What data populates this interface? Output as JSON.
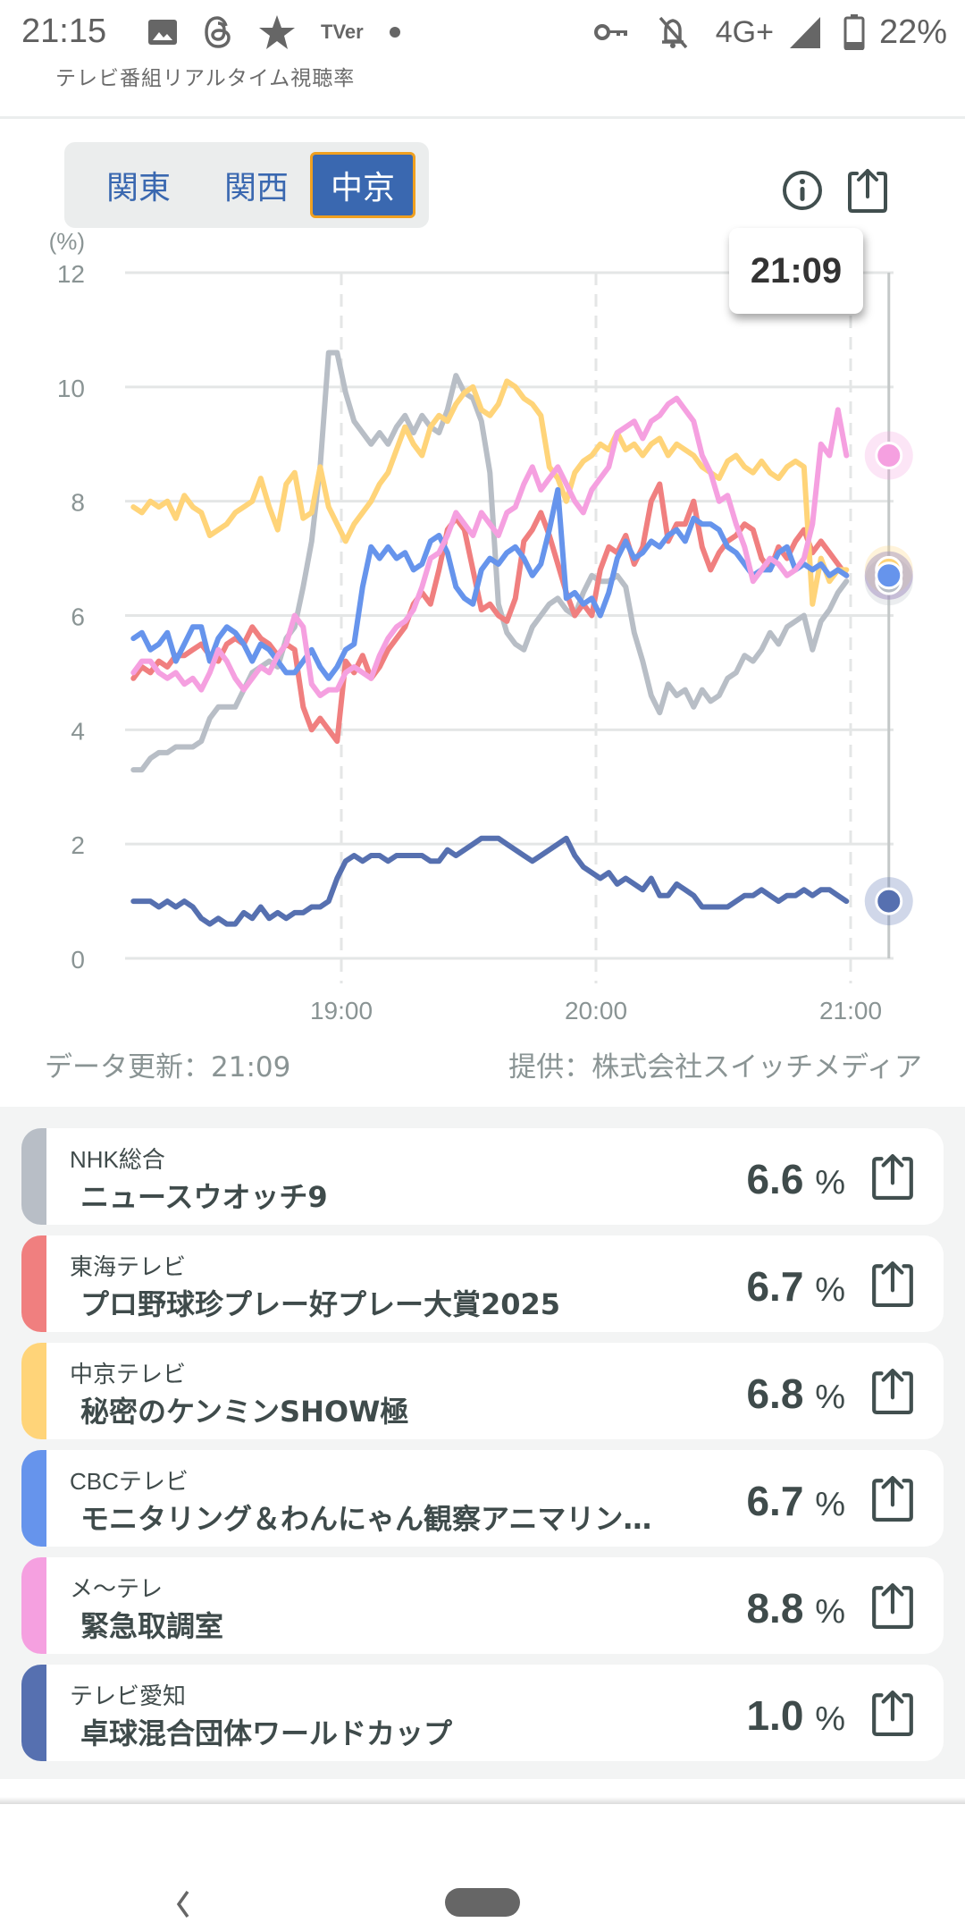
{
  "status_bar": {
    "time": "21:15",
    "left_icons": [
      "image-icon",
      "threads-icon",
      "star-icon",
      "tver-icon",
      "dot-icon"
    ],
    "tver_label": "TVer",
    "network": "4G+",
    "battery": "22%",
    "right_icons": [
      "key-icon",
      "bell-off-icon",
      "signal-icon",
      "battery-icon"
    ]
  },
  "app": {
    "title": "テレビ番組リアルタイム視聴率"
  },
  "region_tabs": [
    {
      "label": "関東",
      "active": false
    },
    {
      "label": "関西",
      "active": false
    },
    {
      "label": "中京",
      "active": true
    }
  ],
  "toolbar": {
    "info_icon": "info-icon",
    "share_icon": "share-icon"
  },
  "tooltip": {
    "time": "21:09"
  },
  "footer": {
    "updated": "データ更新：21:09",
    "provider": "提供：株式会社スイッチメディア"
  },
  "colors": {
    "accent": "#3a68b0",
    "active_border": "#f0a020",
    "nhk": "#b8bec6",
    "tokai": "#f07f7f",
    "chukyo": "#ffd479",
    "cbc": "#6694ec",
    "metele": "#f5a0e0",
    "aichi": "#5670b0"
  },
  "channels": [
    {
      "station": "NHK総合",
      "program": "ニュースウオッチ9",
      "rating": "6.6",
      "unit": "%",
      "color": "#b8bec6"
    },
    {
      "station": "東海テレビ",
      "program": "プロ野球珍プレー好プレー大賞2025",
      "rating": "6.7",
      "unit": "%",
      "color": "#f07f7f"
    },
    {
      "station": "中京テレビ",
      "program": "秘密のケンミンSHOW極",
      "rating": "6.8",
      "unit": "%",
      "color": "#ffd479"
    },
    {
      "station": "CBCテレビ",
      "program": "モニタリング＆わんにゃん観察アニマリン…",
      "rating": "6.7",
      "unit": "%",
      "color": "#6694ec"
    },
    {
      "station": "メ～テレ",
      "program": "緊急取調室",
      "rating": "8.8",
      "unit": "%",
      "color": "#f5a0e0"
    },
    {
      "station": "テレビ愛知",
      "program": "卓球混合団体ワールドカップ",
      "rating": "1.0",
      "unit": "%",
      "color": "#5670b0"
    }
  ],
  "chart_data": {
    "type": "line",
    "title": "",
    "ylabel": "(%)",
    "xlabel": "",
    "ylim": [
      0,
      12
    ],
    "yticks": [
      "0",
      "2",
      "4",
      "6",
      "8",
      "10",
      "12"
    ],
    "ytick_values": [
      0,
      2,
      4,
      6,
      8,
      10,
      12
    ],
    "xticks": [
      "19:00",
      "20:00",
      "21:00"
    ],
    "xtick_minutes": [
      1140,
      1200,
      1260
    ],
    "x_range_minutes": [
      1091,
      1269
    ],
    "cursor_minute": 1269,
    "cursor_label": "21:09",
    "grid": true,
    "x_start_minute": 1091,
    "x_step_minutes": 2,
    "series": [
      {
        "name": "NHK総合",
        "color": "#b8bec6",
        "values": [
          3.3,
          3.3,
          3.5,
          3.6,
          3.6,
          3.7,
          3.7,
          3.7,
          3.8,
          4.2,
          4.4,
          4.4,
          4.4,
          4.7,
          5.0,
          5.1,
          5.2,
          5.1,
          5.6,
          5.8,
          6.5,
          7.3,
          8.6,
          10.6,
          10.6,
          9.9,
          9.4,
          9.2,
          9.0,
          9.2,
          9.0,
          9.3,
          9.5,
          9.2,
          9.5,
          9.3,
          9.2,
          9.6,
          10.2,
          9.9,
          9.8,
          9.4,
          8.5,
          6.2,
          5.7,
          5.5,
          5.4,
          5.8,
          6.0,
          6.2,
          6.3,
          6.1,
          6.0,
          6.4,
          6.7,
          6.6,
          6.6,
          6.7,
          6.5,
          5.7,
          5.2,
          4.6,
          4.3,
          4.8,
          4.6,
          4.7,
          4.4,
          4.7,
          4.5,
          4.6,
          4.9,
          5.0,
          5.3,
          5.2,
          5.4,
          5.7,
          5.5,
          5.8,
          5.9,
          6.0,
          5.4,
          5.9,
          6.1,
          6.4,
          6.6
        ]
      },
      {
        "name": "東海テレビ",
        "color": "#f07f7f",
        "values": [
          4.9,
          5.1,
          5.0,
          5.2,
          5.1,
          5.3,
          5.3,
          5.4,
          5.5,
          5.3,
          5.2,
          5.5,
          5.6,
          5.5,
          5.8,
          5.6,
          5.5,
          5.3,
          5.5,
          5.4,
          4.4,
          4.0,
          4.2,
          4.0,
          3.8,
          5.2,
          5.0,
          5.3,
          4.9,
          5.1,
          5.4,
          5.6,
          5.8,
          6.2,
          6.4,
          6.2,
          6.8,
          7.5,
          7.7,
          7.5,
          6.8,
          6.1,
          6.2,
          6.0,
          5.9,
          6.3,
          7.3,
          7.5,
          7.8,
          7.4,
          6.9,
          6.4,
          6.0,
          6.2,
          6.0,
          6.8,
          7.2,
          7.1,
          7.4,
          6.9,
          7.2,
          8.0,
          8.3,
          7.3,
          7.6,
          7.6,
          8.0,
          7.2,
          6.8,
          7.1,
          7.3,
          7.4,
          7.6,
          7.5,
          7.0,
          6.8,
          7.2,
          7.0,
          7.3,
          7.5,
          7.1,
          7.3,
          7.1,
          6.9,
          6.7
        ]
      },
      {
        "name": "中京テレビ",
        "color": "#ffd479",
        "values": [
          7.9,
          7.8,
          8.0,
          7.9,
          8.0,
          7.7,
          8.1,
          7.9,
          7.8,
          7.4,
          7.5,
          7.6,
          7.8,
          7.9,
          8.0,
          8.4,
          7.9,
          7.5,
          8.3,
          8.5,
          7.7,
          7.8,
          8.6,
          7.9,
          7.6,
          7.3,
          7.6,
          7.8,
          8.0,
          8.3,
          8.5,
          8.9,
          9.3,
          9.0,
          8.8,
          9.3,
          9.5,
          9.4,
          9.7,
          9.9,
          10.0,
          9.6,
          9.5,
          9.7,
          10.1,
          10.0,
          9.8,
          9.7,
          9.5,
          8.6,
          8.4,
          8.0,
          8.5,
          8.7,
          8.8,
          9.0,
          8.9,
          9.2,
          8.9,
          9.0,
          8.8,
          9.0,
          9.1,
          8.8,
          9.0,
          8.9,
          8.8,
          8.6,
          8.5,
          8.4,
          8.7,
          8.8,
          8.6,
          8.5,
          8.7,
          8.5,
          8.4,
          8.6,
          8.7,
          8.6,
          6.2,
          7.0,
          6.6,
          6.8,
          6.8
        ]
      },
      {
        "name": "CBCテレビ",
        "color": "#6694ec",
        "values": [
          5.6,
          5.7,
          5.4,
          5.5,
          5.7,
          5.2,
          5.5,
          5.8,
          5.8,
          5.2,
          5.6,
          5.8,
          5.7,
          5.5,
          5.2,
          5.5,
          5.4,
          5.2,
          5.0,
          5.0,
          5.2,
          5.4,
          5.1,
          4.9,
          5.1,
          5.4,
          5.5,
          6.5,
          7.2,
          7.0,
          7.2,
          7.0,
          7.1,
          6.8,
          6.9,
          7.3,
          7.4,
          7.1,
          6.5,
          6.3,
          6.2,
          6.8,
          7.0,
          6.9,
          7.1,
          7.2,
          7.0,
          6.7,
          6.9,
          7.5,
          8.2,
          6.3,
          6.4,
          6.2,
          6.3,
          6.0,
          6.4,
          7.0,
          7.3,
          7.0,
          7.1,
          7.3,
          7.2,
          7.4,
          7.5,
          7.3,
          7.7,
          7.6,
          7.6,
          7.5,
          7.2,
          7.1,
          6.9,
          6.7,
          6.8,
          6.8,
          7.1,
          7.2,
          6.8,
          6.9,
          6.8,
          6.9,
          6.7,
          6.8,
          6.7
        ]
      },
      {
        "name": "メ～テレ",
        "color": "#f5a0e0",
        "values": [
          5.0,
          5.2,
          5.2,
          5.0,
          4.9,
          5.0,
          4.8,
          4.9,
          4.7,
          5.0,
          5.4,
          5.2,
          4.9,
          4.7,
          4.9,
          5.1,
          5.0,
          5.3,
          5.5,
          6.0,
          5.8,
          4.8,
          4.6,
          4.7,
          4.7,
          5.0,
          5.1,
          5.0,
          4.9,
          5.3,
          5.6,
          5.8,
          5.9,
          6.1,
          6.5,
          7.0,
          7.1,
          7.4,
          7.8,
          7.6,
          7.4,
          7.8,
          7.6,
          7.4,
          7.8,
          7.9,
          8.3,
          8.6,
          8.2,
          8.4,
          8.6,
          8.3,
          8.0,
          7.8,
          8.2,
          8.4,
          8.6,
          9.2,
          9.3,
          9.4,
          9.1,
          9.4,
          9.5,
          9.7,
          9.8,
          9.6,
          9.4,
          8.8,
          8.5,
          8.0,
          8.1,
          7.6,
          7.2,
          6.6,
          6.8,
          7.0,
          6.9,
          6.7,
          6.8,
          7.0,
          7.6,
          9.0,
          8.8,
          9.6,
          8.8
        ]
      },
      {
        "name": "テレビ愛知",
        "color": "#5670b0",
        "values": [
          1.0,
          1.0,
          1.0,
          0.9,
          1.0,
          0.9,
          1.0,
          0.9,
          0.7,
          0.6,
          0.7,
          0.6,
          0.6,
          0.8,
          0.7,
          0.9,
          0.7,
          0.8,
          0.7,
          0.8,
          0.8,
          0.9,
          0.9,
          1.0,
          1.4,
          1.7,
          1.8,
          1.7,
          1.8,
          1.8,
          1.7,
          1.8,
          1.8,
          1.8,
          1.8,
          1.7,
          1.7,
          1.9,
          1.8,
          1.9,
          2.0,
          2.1,
          2.1,
          2.1,
          2.0,
          1.9,
          1.8,
          1.7,
          1.8,
          1.9,
          2.0,
          2.1,
          1.8,
          1.6,
          1.5,
          1.4,
          1.5,
          1.3,
          1.4,
          1.3,
          1.2,
          1.4,
          1.1,
          1.1,
          1.3,
          1.2,
          1.1,
          0.9,
          0.9,
          0.9,
          0.9,
          1.0,
          1.1,
          1.1,
          1.2,
          1.1,
          1.0,
          1.1,
          1.1,
          1.2,
          1.1,
          1.2,
          1.2,
          1.1,
          1.0
        ]
      }
    ]
  },
  "nav": {
    "back_icon": "back-icon",
    "home_icon": "home-pill"
  }
}
